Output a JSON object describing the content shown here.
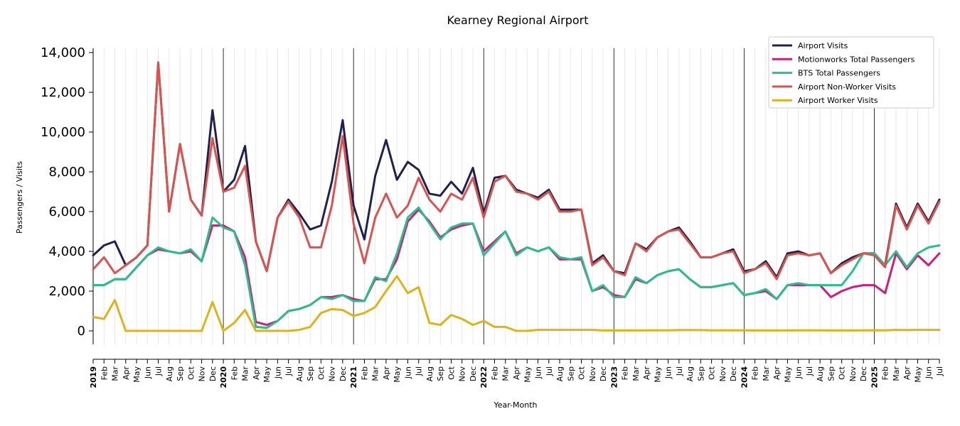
{
  "chart_data": {
    "type": "line",
    "title": "Kearney Regional Airport",
    "xlabel": "Year-Month",
    "ylabel": "Passengers / Visits",
    "ylim": [
      -700,
      14200
    ],
    "yticks": [
      0,
      2000,
      4000,
      6000,
      8000,
      10000,
      12000,
      14000
    ],
    "ytick_labels": [
      "0",
      "2,000",
      "4,000",
      "6,000",
      "8,000",
      "10,000",
      "12,000",
      "14,000"
    ],
    "grid": "vertical monthly lines; darker lines at each January",
    "legend_position": "top-right",
    "months": [
      "2019",
      "Feb",
      "Mar",
      "Apr",
      "May",
      "Jun",
      "Jul",
      "Aug",
      "Sep",
      "Oct",
      "Nov",
      "Dec",
      "2020",
      "Feb",
      "Mar",
      "Apr",
      "May",
      "Jun",
      "Jul",
      "Aug",
      "Sep",
      "Oct",
      "Nov",
      "Dec",
      "2021",
      "Feb",
      "Mar",
      "Apr",
      "May",
      "Jun",
      "Jul",
      "Aug",
      "Sep",
      "Oct",
      "Nov",
      "Dec",
      "2022",
      "Feb",
      "Mar",
      "Apr",
      "May",
      "Jun",
      "Jul",
      "Aug",
      "Sep",
      "Oct",
      "Nov",
      "Dec",
      "2023",
      "Feb",
      "Mar",
      "Apr",
      "May",
      "Jun",
      "Jul",
      "Aug",
      "Sep",
      "Oct",
      "Nov",
      "Dec",
      "2024",
      "Feb",
      "Mar",
      "Apr",
      "May",
      "Jun",
      "Jul",
      "Aug",
      "Sep",
      "Oct",
      "Nov",
      "Dec",
      "2025",
      "Feb",
      "Mar",
      "Apr",
      "May",
      "Jun",
      "Jul"
    ],
    "series": [
      {
        "name": "Airport Visits",
        "color": "#1f2150",
        "values": [
          3800,
          4300,
          4500,
          3300,
          3700,
          4300,
          13500,
          6000,
          9400,
          6600,
          5800,
          11100,
          7000,
          7600,
          9300,
          4500,
          3000,
          5700,
          6600,
          5900,
          5100,
          5300,
          7500,
          10600,
          6300,
          4600,
          7800,
          9600,
          7600,
          8500,
          8100,
          6900,
          6800,
          7500,
          6900,
          8200,
          5900,
          7700,
          7800,
          7100,
          6900,
          6700,
          7100,
          6100,
          6100,
          6100,
          3400,
          3800,
          3000,
          2900,
          4400,
          4100,
          4700,
          5000,
          5200,
          4500,
          3700,
          3700,
          3900,
          4100,
          3000,
          3100,
          3500,
          2700,
          3900,
          4000,
          3800,
          3900,
          2900,
          3400,
          3700,
          3900,
          3900,
          3300,
          6400,
          5200,
          6400,
          5500,
          6600
        ]
      },
      {
        "name": "Motionworks Total Passengers",
        "color": "#d01b7f",
        "values": [
          2300,
          2300,
          2600,
          2600,
          3200,
          3800,
          4100,
          4000,
          3900,
          4000,
          3500,
          5300,
          5300,
          5000,
          3700,
          450,
          300,
          500,
          1000,
          1100,
          1300,
          1700,
          1700,
          1800,
          1600,
          1500,
          2600,
          2600,
          3600,
          5500,
          6100,
          5500,
          4700,
          5100,
          5300,
          5400,
          4000,
          4500,
          5000,
          3900,
          4200,
          4000,
          4200,
          3600,
          3600,
          3600,
          2000,
          2200,
          1800,
          1700,
          2600,
          2400,
          2800,
          3000,
          3100,
          2600,
          2200,
          2200,
          2300,
          2400,
          1800,
          1900,
          2000,
          1600,
          2300,
          2300,
          2300,
          2300,
          1700,
          2000,
          2200,
          2300,
          2300,
          1900,
          3900,
          3100,
          3800,
          3300,
          3900
        ]
      },
      {
        "name": "BTS Total Passengers",
        "color": "#27c08a",
        "values": [
          2300,
          2300,
          2600,
          2600,
          3200,
          3800,
          4200,
          4000,
          3900,
          4100,
          3500,
          5700,
          5200,
          5000,
          3300,
          200,
          150,
          500,
          1000,
          1100,
          1300,
          1700,
          1600,
          1800,
          1500,
          1500,
          2700,
          2500,
          3900,
          5700,
          6200,
          5400,
          4600,
          5200,
          5400,
          5400,
          3800,
          4400,
          5000,
          3800,
          4200,
          4000,
          4200,
          3700,
          3600,
          3700,
          2000,
          2300,
          1700,
          1700,
          2700,
          2400,
          2800,
          3000,
          3100,
          2600,
          2200,
          2200,
          2300,
          2400,
          1800,
          1900,
          2100,
          1600,
          2300,
          2400,
          2300,
          2300,
          2300,
          2300,
          3000,
          3900,
          3900,
          3300,
          4000,
          3200,
          3900,
          4200,
          4300
        ]
      },
      {
        "name": "Airport Non-Worker Visits",
        "color": "#d9534f",
        "values": [
          3100,
          3700,
          2900,
          3300,
          3700,
          4300,
          13500,
          6000,
          9400,
          6600,
          5800,
          9700,
          7000,
          7200,
          8300,
          4500,
          3000,
          5700,
          6500,
          5700,
          4200,
          4200,
          6300,
          9800,
          5400,
          3400,
          5700,
          6900,
          5700,
          6300,
          7700,
          6600,
          6000,
          6900,
          6600,
          7700,
          5700,
          7500,
          7800,
          7000,
          6900,
          6600,
          7000,
          6000,
          6000,
          6100,
          3300,
          3700,
          3000,
          2800,
          4400,
          4000,
          4700,
          5000,
          5100,
          4400,
          3700,
          3700,
          3900,
          4000,
          2900,
          3100,
          3400,
          2600,
          3800,
          3900,
          3800,
          3900,
          2900,
          3300,
          3600,
          3900,
          3800,
          3200,
          6300,
          5100,
          6300,
          5400,
          6500
        ]
      },
      {
        "name": "Airport Worker Visits",
        "color": "#e0b21a",
        "values": [
          700,
          600,
          1550,
          0,
          0,
          0,
          0,
          0,
          0,
          0,
          0,
          1450,
          0,
          400,
          1050,
          0,
          0,
          0,
          0,
          50,
          200,
          900,
          1100,
          1050,
          750,
          900,
          1200,
          2000,
          2750,
          1900,
          2200,
          400,
          300,
          800,
          600,
          300,
          500,
          200,
          200,
          0,
          0,
          50,
          50,
          50,
          50,
          50,
          50,
          20,
          20,
          20,
          20,
          30,
          30,
          30,
          40,
          40,
          40,
          30,
          30,
          30,
          30,
          20,
          20,
          20,
          20,
          30,
          30,
          30,
          20,
          20,
          20,
          30,
          30,
          30,
          50,
          40,
          50,
          50,
          50
        ]
      }
    ]
  }
}
